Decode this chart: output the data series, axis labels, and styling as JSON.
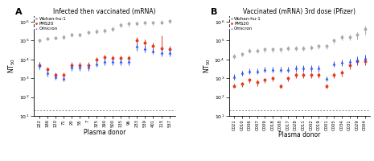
{
  "panel_A": {
    "title": "Infected then vaccinated (mRNA)",
    "label": "A",
    "donors": [
      "222",
      "186",
      "120",
      "71",
      "20",
      "55",
      "7",
      "325",
      "390",
      "500",
      "135",
      "96",
      "233",
      "539",
      "401",
      "115",
      "537"
    ],
    "wuhan": [
      100000,
      130000,
      140000,
      160000,
      200000,
      200000,
      280000,
      320000,
      350000,
      420000,
      700000,
      800000,
      800000,
      900000,
      900000,
      950000,
      1100000
    ],
    "wuhan_err_lo": [
      25000,
      30000,
      30000,
      40000,
      50000,
      50000,
      70000,
      80000,
      90000,
      110000,
      200000,
      220000,
      200000,
      230000,
      220000,
      230000,
      300000
    ],
    "wuhan_err_hi": [
      25000,
      30000,
      30000,
      40000,
      50000,
      50000,
      70000,
      80000,
      90000,
      110000,
      200000,
      220000,
      200000,
      230000,
      220000,
      230000,
      300000
    ],
    "pms20": [
      5000,
      3000,
      1500,
      1500,
      5000,
      5000,
      5000,
      10000,
      13000,
      12000,
      12000,
      12000,
      100000,
      80000,
      50000,
      40000,
      35000
    ],
    "pms20_err_lo": [
      2000,
      1000,
      500,
      500,
      2000,
      2000,
      2000,
      3000,
      4000,
      4000,
      4000,
      4000,
      50000,
      40000,
      20000,
      15000,
      15000
    ],
    "pms20_err_hi": [
      2000,
      1000,
      500,
      500,
      2000,
      2000,
      2000,
      3000,
      4000,
      4000,
      4000,
      4000,
      50000,
      40000,
      30000,
      150000,
      15000
    ],
    "omicron": [
      5000,
      2000,
      1200,
      1000,
      4000,
      4000,
      4000,
      6000,
      8000,
      8000,
      8000,
      8000,
      50000,
      40000,
      30000,
      25000,
      25000
    ],
    "omicron_err_lo": [
      2000,
      800,
      400,
      300,
      1500,
      1500,
      1500,
      2000,
      3000,
      3000,
      3000,
      3000,
      20000,
      15000,
      10000,
      10000,
      10000
    ],
    "omicron_err_hi": [
      2000,
      800,
      400,
      300,
      1500,
      1500,
      1500,
      2000,
      3000,
      3000,
      3000,
      3000,
      20000,
      15000,
      10000,
      10000,
      10000
    ]
  },
  "panel_B": {
    "title": "Vaccinated (mRNA) 3rd dose (Pfizer)",
    "label": "B",
    "donors": [
      "C021",
      "C010",
      "C006",
      "C007",
      "C009",
      "C018",
      "C008",
      "C017",
      "C028",
      "C011",
      "C002",
      "C019",
      "C001",
      "C005",
      "C034",
      "C031",
      "C029",
      "C004"
    ],
    "wuhan": [
      15000,
      20000,
      30000,
      30000,
      35000,
      35000,
      35000,
      40000,
      40000,
      40000,
      45000,
      50000,
      50000,
      100000,
      150000,
      150000,
      200000,
      400000
    ],
    "wuhan_err_lo": [
      4000,
      5000,
      8000,
      8000,
      10000,
      10000,
      10000,
      10000,
      10000,
      10000,
      12000,
      15000,
      15000,
      30000,
      50000,
      50000,
      80000,
      200000
    ],
    "wuhan_err_hi": [
      4000,
      5000,
      8000,
      8000,
      10000,
      10000,
      10000,
      10000,
      10000,
      10000,
      12000,
      15000,
      15000,
      30000,
      50000,
      50000,
      80000,
      200000
    ],
    "pms20": [
      400,
      500,
      800,
      600,
      800,
      1000,
      400,
      1000,
      1500,
      1500,
      1500,
      1500,
      400,
      1500,
      2000,
      5000,
      8000,
      8000
    ],
    "pms20_err_lo": [
      100,
      150,
      250,
      200,
      250,
      300,
      120,
      300,
      500,
      500,
      500,
      500,
      120,
      500,
      700,
      2000,
      3000,
      3000
    ],
    "pms20_err_hi": [
      100,
      150,
      250,
      200,
      250,
      300,
      120,
      300,
      500,
      500,
      500,
      500,
      120,
      500,
      700,
      2000,
      3000,
      3000
    ],
    "omicron": [
      1200,
      2000,
      2500,
      2500,
      3000,
      3000,
      3000,
      3000,
      3500,
      3500,
      3500,
      3500,
      1000,
      6000,
      7000,
      8000,
      10000,
      12000
    ],
    "omicron_err_lo": [
      400,
      600,
      800,
      800,
      1000,
      1000,
      1000,
      1000,
      1200,
      1200,
      1200,
      1200,
      300,
      2000,
      2500,
      3000,
      4000,
      5000
    ],
    "omicron_err_hi": [
      400,
      600,
      800,
      800,
      1000,
      1000,
      1000,
      1000,
      1200,
      1200,
      1200,
      1200,
      300,
      2000,
      2500,
      3000,
      4000,
      5000
    ]
  },
  "colors": {
    "wuhan": "#aaaaaa",
    "pms20": "#e8391d",
    "omicron": "#3355ee"
  },
  "ylim": [
    10,
    2000000
  ],
  "dotted_line_y": 20,
  "xlabel": "Plasma donor"
}
